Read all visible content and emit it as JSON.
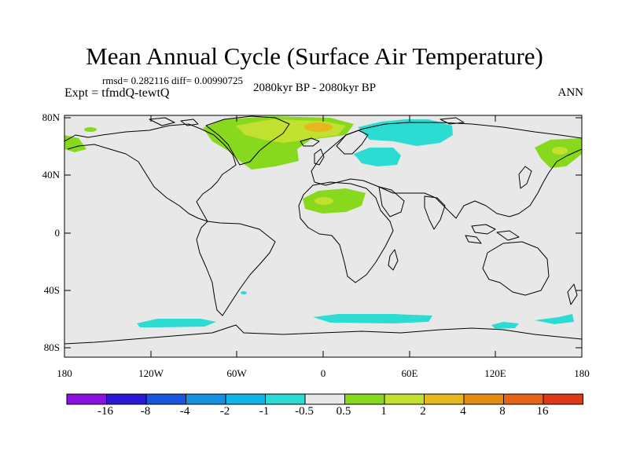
{
  "title": "Mean Annual Cycle (Surface Air Temperature)",
  "stats": "rmsd= 0.282116 diff= 0.00990725",
  "expt": "Expt = tfmdQ-tewtQ",
  "period": "2080kyr BP - 2080kyr BP",
  "season": "ANN",
  "axes": {
    "y_ticks": [
      "80N",
      "40N",
      "0",
      "40S",
      "80S"
    ],
    "x_ticks": [
      "180",
      "120W",
      "60W",
      "0",
      "60E",
      "120E",
      "180"
    ]
  },
  "colorbar": {
    "labels": [
      "-16",
      "-8",
      "-4",
      "-2",
      "-1",
      "-0.5",
      "0.5",
      "1",
      "2",
      "4",
      "8",
      "16"
    ],
    "colors": [
      "#8a12e0",
      "#2a1ad6",
      "#1a55e0",
      "#1890e0",
      "#12b6e6",
      "#2cdcd2",
      "#e8e8e8",
      "#88d81e",
      "#c2e030",
      "#e6b81e",
      "#e68c12",
      "#e66414",
      "#dc3a14"
    ]
  }
}
